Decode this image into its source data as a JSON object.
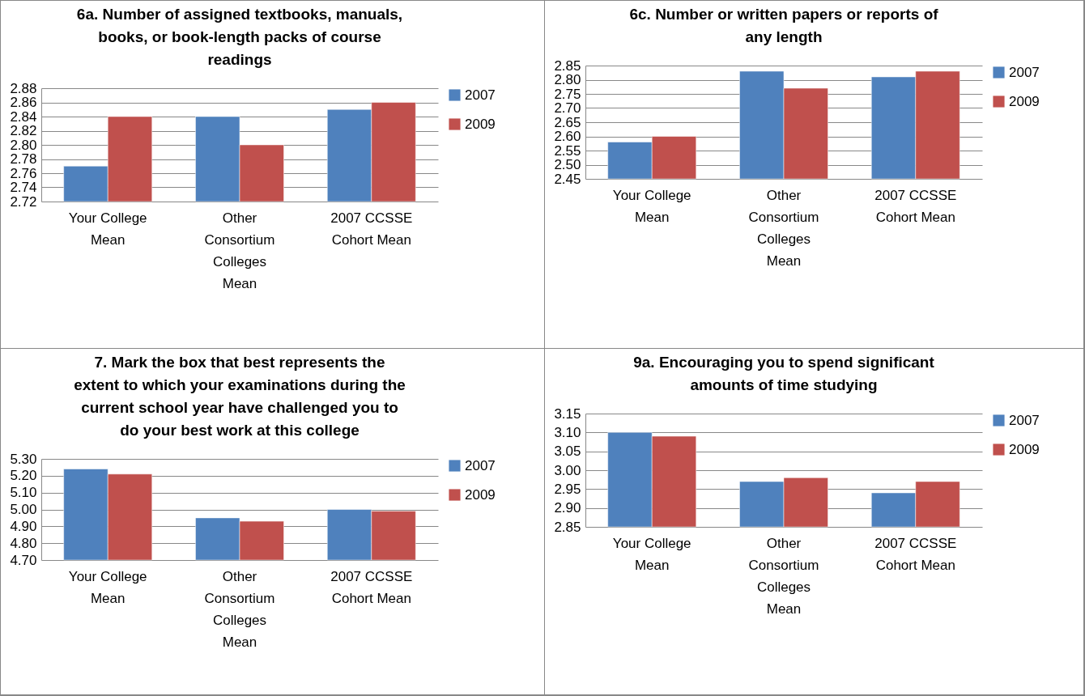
{
  "chart_data": [
    {
      "type": "bar",
      "title": "6a.   Number of assigned textbooks, manuals, books, or book-length packs of course readings",
      "categories": [
        "Your College Mean",
        "Other Consortium Colleges Mean",
        "2007 CCSSE Cohort Mean"
      ],
      "series": [
        {
          "name": "2007",
          "color": "#4f81bd",
          "values": [
            2.77,
            2.84,
            2.85
          ]
        },
        {
          "name": "2009",
          "color": "#c0504d",
          "values": [
            2.84,
            2.8,
            2.86
          ]
        }
      ],
      "ylim": [
        2.72,
        2.88
      ],
      "yticks": [
        {
          "value": 2.72,
          "label": "2.72"
        },
        {
          "value": 2.74,
          "label": "2.74"
        },
        {
          "value": 2.76,
          "label": "2.76"
        },
        {
          "value": 2.78,
          "label": "2.78"
        },
        {
          "value": 2.8,
          "label": "2.80"
        },
        {
          "value": 2.82,
          "label": "2.82"
        },
        {
          "value": 2.84,
          "label": "2.84"
        },
        {
          "value": 2.86,
          "label": "2.86"
        },
        {
          "value": 2.88,
          "label": "2.88"
        }
      ],
      "grid": "y",
      "legend": "right"
    },
    {
      "type": "bar",
      "title": "6c.   Number or written papers or reports of any length",
      "categories": [
        "Your College Mean",
        "Other Consortium Colleges Mean",
        "2007 CCSSE Cohort Mean"
      ],
      "series": [
        {
          "name": "2007",
          "color": "#4f81bd",
          "values": [
            2.58,
            2.83,
            2.81
          ]
        },
        {
          "name": "2009",
          "color": "#c0504d",
          "values": [
            2.6,
            2.77,
            2.83
          ]
        }
      ],
      "ylim": [
        2.45,
        2.85
      ],
      "yticks": [
        {
          "value": 2.45,
          "label": "2.45"
        },
        {
          "value": 2.5,
          "label": "2.50"
        },
        {
          "value": 2.55,
          "label": "2.55"
        },
        {
          "value": 2.6,
          "label": "2.60"
        },
        {
          "value": 2.65,
          "label": "2.65"
        },
        {
          "value": 2.7,
          "label": "2.70"
        },
        {
          "value": 2.75,
          "label": "2.75"
        },
        {
          "value": 2.8,
          "label": "2.80"
        },
        {
          "value": 2.85,
          "label": "2.85"
        }
      ],
      "grid": "y",
      "legend": "right"
    },
    {
      "type": "bar",
      "title": "7.    Mark the box that best represents the extent to which your examinations during the current school year have challenged you to do your best work at this college",
      "categories": [
        "Your College Mean",
        "Other Consortium Colleges Mean",
        "2007 CCSSE Cohort Mean"
      ],
      "series": [
        {
          "name": "2007",
          "color": "#4f81bd",
          "values": [
            5.24,
            4.95,
            5.0
          ]
        },
        {
          "name": "2009",
          "color": "#c0504d",
          "values": [
            5.21,
            4.93,
            4.99
          ]
        }
      ],
      "ylim": [
        4.7,
        5.3
      ],
      "yticks": [
        {
          "value": 4.7,
          "label": "4.70"
        },
        {
          "value": 4.8,
          "label": "4.80"
        },
        {
          "value": 4.9,
          "label": "4.90"
        },
        {
          "value": 5.0,
          "label": "5.00"
        },
        {
          "value": 5.1,
          "label": "5.10"
        },
        {
          "value": 5.2,
          "label": "5.20"
        },
        {
          "value": 5.3,
          "label": "5.30"
        }
      ],
      "grid": "y",
      "legend": "right"
    },
    {
      "type": "bar",
      "title": "9a.  Encouraging you to spend significant amounts of time studying",
      "categories": [
        "Your College Mean",
        "Other Consortium Colleges Mean",
        "2007 CCSSE Cohort Mean"
      ],
      "series": [
        {
          "name": "2007",
          "color": "#4f81bd",
          "values": [
            3.1,
            2.97,
            2.94
          ]
        },
        {
          "name": "2009",
          "color": "#c0504d",
          "values": [
            3.09,
            2.98,
            2.97
          ]
        }
      ],
      "ylim": [
        2.85,
        3.15
      ],
      "yticks": [
        {
          "value": 2.85,
          "label": "2.85"
        },
        {
          "value": 2.9,
          "label": "2.90"
        },
        {
          "value": 2.95,
          "label": "2.95"
        },
        {
          "value": 3.0,
          "label": "3.00"
        },
        {
          "value": 3.05,
          "label": "3.05"
        },
        {
          "value": 3.1,
          "label": "3.10"
        },
        {
          "value": 3.15,
          "label": "3.15"
        }
      ],
      "grid": "y",
      "legend": "right"
    }
  ]
}
